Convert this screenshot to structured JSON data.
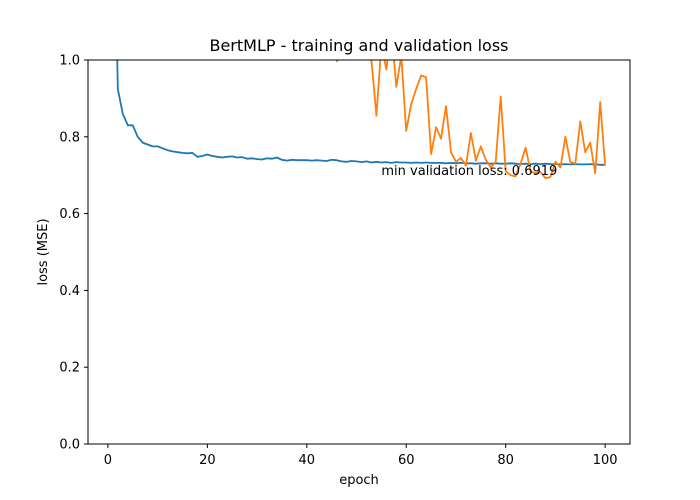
{
  "chart_data": {
    "type": "line",
    "title": "BertMLP - training and validation loss",
    "xlabel": "epoch",
    "ylabel": "loss (MSE)",
    "xlim": [
      -4,
      105
    ],
    "ylim": [
      0,
      1.0
    ],
    "x_ticks": [
      0,
      20,
      40,
      60,
      80,
      100
    ],
    "y_ticks": [
      0.0,
      0.2,
      0.4,
      0.6,
      0.8,
      1.0
    ],
    "x_tick_labels": [
      "0",
      "20",
      "40",
      "60",
      "80",
      "100"
    ],
    "y_tick_labels": [
      "0.0",
      "0.2",
      "0.4",
      "0.6",
      "0.8",
      "1.0"
    ],
    "grid": false,
    "annotation": {
      "text": "min validation loss: 0.6919",
      "x": 55,
      "y": 0.7
    },
    "series": [
      {
        "color": "#1f77b4",
        "x": [
          1,
          2,
          3,
          4,
          5,
          6,
          7,
          8,
          9,
          10,
          11,
          12,
          13,
          14,
          15,
          16,
          17,
          18,
          19,
          20,
          21,
          22,
          23,
          24,
          25,
          26,
          27,
          28,
          29,
          30,
          31,
          32,
          33,
          34,
          35,
          36,
          37,
          38,
          39,
          40,
          41,
          42,
          43,
          44,
          45,
          46,
          47,
          48,
          49,
          50,
          51,
          52,
          53,
          54,
          55,
          56,
          57,
          58,
          59,
          60,
          61,
          62,
          63,
          64,
          65,
          66,
          67,
          68,
          69,
          70,
          71,
          72,
          73,
          74,
          75,
          76,
          77,
          78,
          79,
          80,
          81,
          82,
          83,
          84,
          85,
          86,
          87,
          88,
          89,
          90,
          91,
          92,
          93,
          94,
          95,
          96,
          97,
          98,
          99,
          100
        ],
        "y": [
          1.6,
          0.925,
          0.86,
          0.83,
          0.83,
          0.8,
          0.785,
          0.78,
          0.775,
          0.775,
          0.77,
          0.765,
          0.762,
          0.76,
          0.758,
          0.757,
          0.758,
          0.748,
          0.75,
          0.754,
          0.75,
          0.748,
          0.746,
          0.748,
          0.749,
          0.746,
          0.747,
          0.743,
          0.744,
          0.742,
          0.741,
          0.744,
          0.743,
          0.746,
          0.74,
          0.738,
          0.74,
          0.739,
          0.739,
          0.739,
          0.738,
          0.739,
          0.738,
          0.737,
          0.74,
          0.739,
          0.736,
          0.735,
          0.737,
          0.736,
          0.734,
          0.736,
          0.733,
          0.735,
          0.733,
          0.734,
          0.732,
          0.734,
          0.733,
          0.733,
          0.732,
          0.733,
          0.732,
          0.733,
          0.732,
          0.732,
          0.732,
          0.731,
          0.732,
          0.731,
          0.732,
          0.731,
          0.731,
          0.73,
          0.731,
          0.731,
          0.73,
          0.731,
          0.73,
          0.73,
          0.731,
          0.73,
          0.729,
          0.73,
          0.729,
          0.73,
          0.729,
          0.73,
          0.729,
          0.729,
          0.728,
          0.729,
          0.728,
          0.729,
          0.728,
          0.728,
          0.729,
          0.728,
          0.727,
          0.727
        ]
      },
      {
        "color": "#ff7f0e",
        "x": [
          46,
          47,
          48,
          49,
          50,
          51,
          52,
          53,
          54,
          55,
          56,
          57,
          58,
          59,
          60,
          61,
          62,
          63,
          64,
          65,
          66,
          67,
          68,
          69,
          70,
          71,
          72,
          73,
          74,
          75,
          76,
          77,
          78,
          79,
          80,
          81,
          82,
          83,
          84,
          85,
          86,
          87,
          88,
          89,
          90,
          91,
          92,
          93,
          94,
          95,
          96,
          97,
          98,
          99,
          100
        ],
        "y": [
          0.995,
          1.02,
          1.06,
          1.05,
          1.04,
          1.07,
          1.03,
          1.0,
          0.855,
          1.04,
          0.975,
          1.08,
          0.93,
          1.01,
          0.815,
          0.885,
          0.925,
          0.96,
          0.955,
          0.755,
          0.825,
          0.795,
          0.88,
          0.76,
          0.735,
          0.745,
          0.725,
          0.81,
          0.738,
          0.775,
          0.74,
          0.72,
          0.735,
          0.905,
          0.71,
          0.7,
          0.697,
          0.73,
          0.772,
          0.71,
          0.705,
          0.708,
          0.692,
          0.695,
          0.735,
          0.72,
          0.8,
          0.735,
          0.73,
          0.84,
          0.76,
          0.785,
          0.705,
          0.89,
          0.725
        ]
      }
    ]
  }
}
